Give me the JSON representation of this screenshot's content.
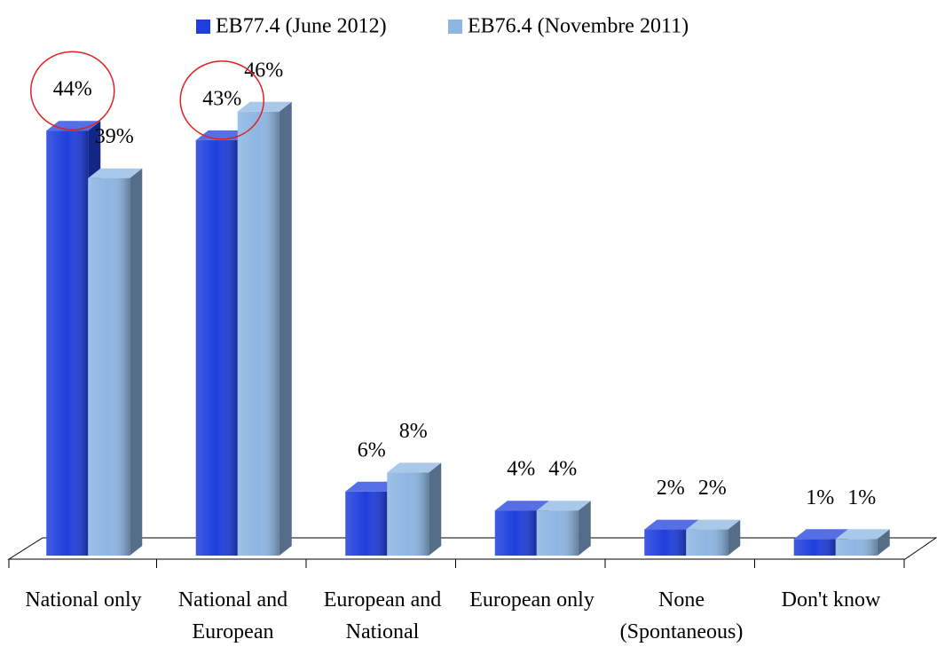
{
  "chart_data": {
    "type": "bar3d",
    "categories": [
      "National only",
      "National and European",
      "European and National",
      "European only",
      "None (Spontaneous)",
      "Don't know"
    ],
    "series": [
      {
        "name": "EB77.4 (June 2012)",
        "color": "#1f3fdd",
        "values": [
          44,
          43,
          6,
          4,
          2,
          1
        ],
        "value_labels": [
          "44%",
          "43%",
          "6%",
          "4%",
          "2%",
          "1%"
        ]
      },
      {
        "name": "EB76.4 (Novembre 2011)",
        "color": "#8db6e2",
        "values": [
          39,
          46,
          8,
          4,
          2,
          1
        ],
        "value_labels": [
          "39%",
          "46%",
          "8%",
          "4%",
          "2%",
          "1%"
        ]
      }
    ],
    "legend": "top"
  }
}
